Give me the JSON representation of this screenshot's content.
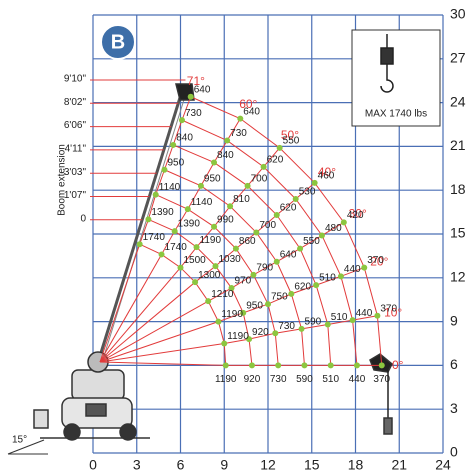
{
  "chart_data": {
    "type": "load-chart",
    "badge": "B",
    "boom_label": "Boom extension",
    "hook_label": "MAX 1740 lbs",
    "tilt_label": "15°",
    "xlim": [
      0,
      24
    ],
    "xticks": [
      0,
      3,
      6,
      9,
      12,
      15,
      18,
      21,
      24
    ],
    "ylim": [
      0,
      30
    ],
    "yticks": [
      0,
      3,
      6,
      9,
      12,
      15,
      18,
      21,
      24,
      27,
      30
    ],
    "grid": true,
    "grid_color": "#4a6fb5",
    "arc_color": "#e23b3b",
    "point_color": "#8cc63f",
    "angles": [
      "71°",
      "60°",
      "50°",
      "40°",
      "30°",
      "20°",
      "10°",
      "0°"
    ],
    "series": [
      {
        "name": "9'10\"",
        "values": [
          640,
          640,
          550,
          460,
          420,
          370,
          370,
          370
        ],
        "x": [
          6.7,
          10.1,
          12.8,
          15.2,
          17.2,
          18.6,
          19.5,
          19.8
        ],
        "y": [
          24.4,
          22.9,
          20.9,
          18.5,
          15.8,
          12.7,
          9.4,
          6
        ]
      },
      {
        "name": "8'02\"",
        "values": [
          730,
          730,
          620,
          530,
          480,
          440,
          440,
          440
        ],
        "x": [
          6.1,
          9.2,
          11.7,
          13.9,
          15.7,
          17.0,
          17.8,
          18.1
        ],
        "y": [
          22.8,
          21.4,
          19.6,
          17.4,
          14.9,
          12.1,
          9.1,
          6
        ]
      },
      {
        "name": "6'06\"",
        "values": [
          840,
          840,
          700,
          620,
          550,
          510,
          510,
          510
        ],
        "x": [
          5.5,
          8.3,
          10.6,
          12.6,
          14.2,
          15.3,
          16.1,
          16.3
        ],
        "y": [
          21.1,
          19.9,
          18.3,
          16.3,
          14.0,
          11.5,
          8.8,
          6
        ]
      },
      {
        "name": "4'11\"",
        "values": [
          950,
          950,
          810,
          700,
          640,
          620,
          590,
          590
        ],
        "x": [
          4.9,
          7.4,
          9.4,
          11.2,
          12.6,
          13.6,
          14.3,
          14.5
        ],
        "y": [
          19.4,
          18.3,
          16.9,
          15.1,
          13.1,
          10.9,
          8.5,
          6
        ]
      },
      {
        "name": "3'03\"",
        "values": [
          1140,
          1140,
          990,
          860,
          790,
          750,
          730,
          730
        ],
        "x": [
          4.3,
          6.5,
          8.3,
          9.8,
          11.0,
          12.0,
          12.5,
          12.7
        ],
        "y": [
          17.7,
          16.7,
          15.5,
          14.0,
          12.2,
          10.2,
          8.2,
          6
        ]
      },
      {
        "name": "1'07\"",
        "values": [
          1390,
          1390,
          1190,
          1030,
          970,
          950,
          920,
          920
        ],
        "x": [
          3.8,
          5.6,
          7.1,
          8.4,
          9.5,
          10.3,
          10.7,
          10.9
        ],
        "y": [
          16.0,
          15.2,
          14.1,
          12.8,
          11.3,
          9.6,
          7.8,
          6
        ]
      },
      {
        "name": "0",
        "values": [
          1740,
          1740,
          1500,
          1300,
          1210,
          1190,
          1190,
          1190
        ],
        "x": [
          3.2,
          4.7,
          6.0,
          7.0,
          7.9,
          8.6,
          9.0,
          9.1
        ],
        "y": [
          14.3,
          13.6,
          12.7,
          11.7,
          10.4,
          9.0,
          7.5,
          6
        ]
      }
    ]
  }
}
